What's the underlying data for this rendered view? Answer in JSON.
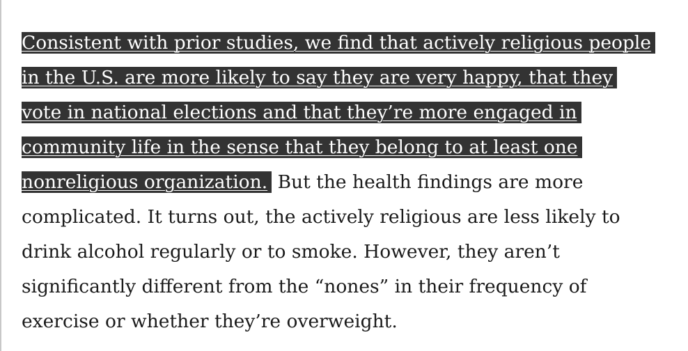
{
  "article": {
    "highlighted_lines": [
      "Consistent with prior studies, we find that actively religious people",
      "in the U.S. are more likely to say they are very happy, that they",
      "vote in national elections and that they’re more engaged in",
      "community life in the sense that they belong to at least one",
      "nonreligious organization."
    ],
    "line5_rest": " But the health findings are more",
    "plain_lines": [
      "complicated. It turns out, the actively religious are less likely to",
      "drink alcohol regularly or to smoke. However, they aren’t",
      "significantly different from the “nones” in their frequency of",
      "exercise or whether they’re overweight."
    ]
  },
  "colors": {
    "highlight_background": "#333333",
    "highlight_text": "#ffffff",
    "body_text": "#1a1a1a"
  }
}
